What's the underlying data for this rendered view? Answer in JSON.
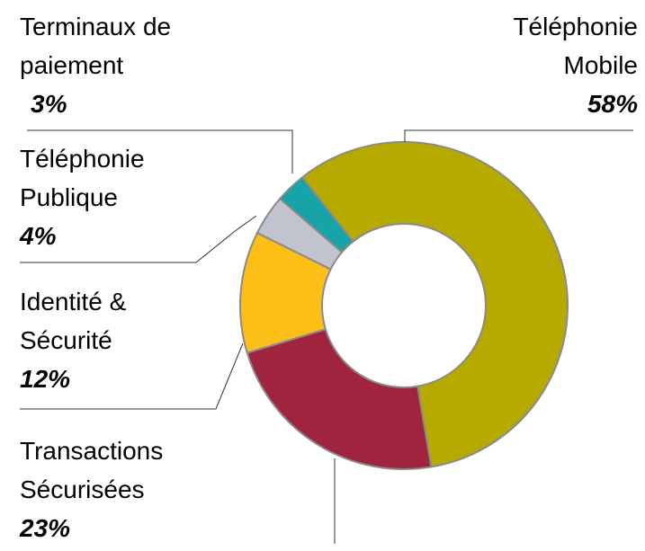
{
  "chart_data": {
    "type": "donut",
    "categories": [
      "Téléphonie Mobile",
      "Transactions Sécurisées",
      "Identité & Sécurité",
      "Téléphonie Publique",
      "Terminaux de paiement"
    ],
    "values": [
      58,
      23,
      12,
      4,
      3
    ],
    "value_labels": [
      "58%",
      "23%",
      "12%",
      "4%",
      "3%"
    ],
    "colors": [
      "#b6a900",
      "#a1243f",
      "#fbbf17",
      "#c1c3cf",
      "#18a3a9"
    ]
  }
}
